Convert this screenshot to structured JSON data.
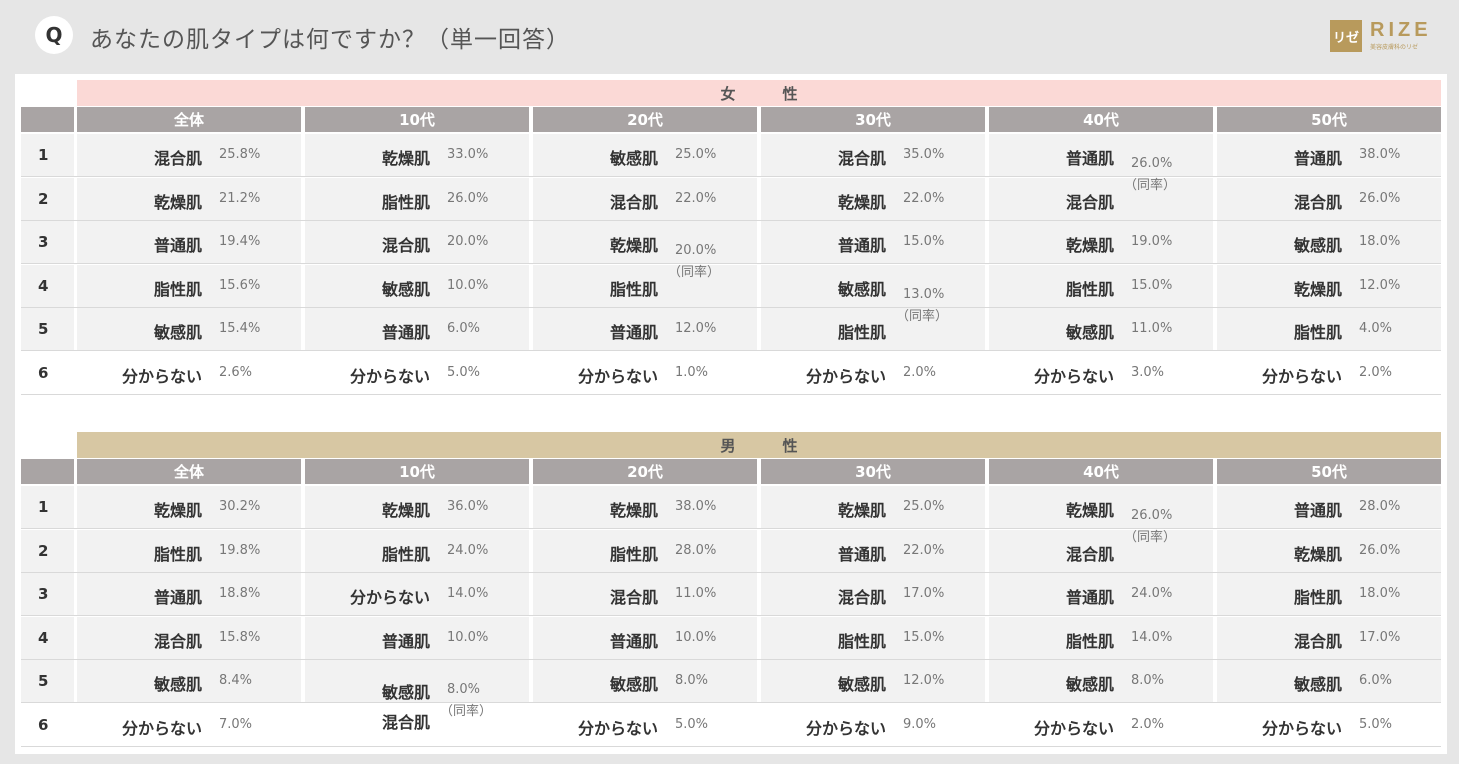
{
  "header": {
    "q_badge": "Q",
    "title": "あなたの肌タイプは何ですか？（単一回答）",
    "logo_mark": "リゼ",
    "logo_word": "RIZE",
    "logo_sub": "美容皮膚科のリゼ"
  },
  "chart_data": {
    "type": "table",
    "tie_label": "（同率）",
    "columns": [
      "全体",
      "10代",
      "20代",
      "30代",
      "40代",
      "50代"
    ],
    "ranks": [
      "1",
      "2",
      "3",
      "4",
      "5",
      "6"
    ],
    "groups": [
      {
        "name": "女　性",
        "blocks": [
          {
            "rows": [
              [
                "混合肌",
                "25.8%"
              ],
              [
                "乾燥肌",
                "21.2%"
              ],
              [
                "普通肌",
                "19.4%"
              ],
              [
                "脂性肌",
                "15.6%"
              ],
              [
                "敏感肌",
                "15.4%"
              ],
              [
                "分からない",
                "2.6%"
              ]
            ],
            "ties": []
          },
          {
            "rows": [
              [
                "乾燥肌",
                "33.0%"
              ],
              [
                "脂性肌",
                "26.0%"
              ],
              [
                "混合肌",
                "20.0%"
              ],
              [
                "敏感肌",
                "10.0%"
              ],
              [
                "普通肌",
                "6.0%"
              ],
              [
                "分からない",
                "5.0%"
              ]
            ],
            "ties": []
          },
          {
            "rows": [
              [
                "敏感肌",
                "25.0%"
              ],
              [
                "混合肌",
                "22.0%"
              ],
              [
                "乾燥肌",
                ""
              ],
              [
                "脂性肌",
                ""
              ],
              [
                "普通肌",
                "12.0%"
              ],
              [
                "分からない",
                "1.0%"
              ]
            ],
            "ties": [
              {
                "ranks": [
                  3,
                  4
                ],
                "value": "20.0%"
              }
            ]
          },
          {
            "rows": [
              [
                "混合肌",
                "35.0%"
              ],
              [
                "乾燥肌",
                "22.0%"
              ],
              [
                "普通肌",
                "15.0%"
              ],
              [
                "敏感肌",
                ""
              ],
              [
                "脂性肌",
                ""
              ],
              [
                "分からない",
                "2.0%"
              ]
            ],
            "ties": [
              {
                "ranks": [
                  4,
                  5
                ],
                "value": "13.0%"
              }
            ]
          },
          {
            "rows": [
              [
                "普通肌",
                ""
              ],
              [
                "混合肌",
                ""
              ],
              [
                "乾燥肌",
                "19.0%"
              ],
              [
                "脂性肌",
                "15.0%"
              ],
              [
                "敏感肌",
                "11.0%"
              ],
              [
                "分からない",
                "3.0%"
              ]
            ],
            "ties": [
              {
                "ranks": [
                  1,
                  2
                ],
                "value": "26.0%"
              }
            ]
          },
          {
            "rows": [
              [
                "普通肌",
                "38.0%"
              ],
              [
                "混合肌",
                "26.0%"
              ],
              [
                "敏感肌",
                "18.0%"
              ],
              [
                "乾燥肌",
                "12.0%"
              ],
              [
                "脂性肌",
                "4.0%"
              ],
              [
                "分からない",
                "2.0%"
              ]
            ],
            "ties": []
          }
        ]
      },
      {
        "name": "男　性",
        "blocks": [
          {
            "rows": [
              [
                "乾燥肌",
                "30.2%"
              ],
              [
                "脂性肌",
                "19.8%"
              ],
              [
                "普通肌",
                "18.8%"
              ],
              [
                "混合肌",
                "15.8%"
              ],
              [
                "敏感肌",
                "8.4%"
              ],
              [
                "分からない",
                "7.0%"
              ]
            ],
            "ties": []
          },
          {
            "rows": [
              [
                "乾燥肌",
                "36.0%"
              ],
              [
                "脂性肌",
                "24.0%"
              ],
              [
                "分からない",
                "14.0%"
              ],
              [
                "普通肌",
                "10.0%"
              ],
              [
                "敏感肌",
                ""
              ],
              [
                "混合肌",
                ""
              ]
            ],
            "ties": [
              {
                "ranks": [
                  5,
                  6
                ],
                "value": "8.0%"
              }
            ]
          },
          {
            "rows": [
              [
                "乾燥肌",
                "38.0%"
              ],
              [
                "脂性肌",
                "28.0%"
              ],
              [
                "混合肌",
                "11.0%"
              ],
              [
                "普通肌",
                "10.0%"
              ],
              [
                "敏感肌",
                "8.0%"
              ],
              [
                "分からない",
                "5.0%"
              ]
            ],
            "ties": []
          },
          {
            "rows": [
              [
                "乾燥肌",
                "25.0%"
              ],
              [
                "普通肌",
                "22.0%"
              ],
              [
                "混合肌",
                "17.0%"
              ],
              [
                "脂性肌",
                "15.0%"
              ],
              [
                "敏感肌",
                "12.0%"
              ],
              [
                "分からない",
                "9.0%"
              ]
            ],
            "ties": []
          },
          {
            "rows": [
              [
                "乾燥肌",
                ""
              ],
              [
                "混合肌",
                ""
              ],
              [
                "普通肌",
                "24.0%"
              ],
              [
                "脂性肌",
                "14.0%"
              ],
              [
                "敏感肌",
                "8.0%"
              ],
              [
                "分からない",
                "2.0%"
              ]
            ],
            "ties": [
              {
                "ranks": [
                  1,
                  2
                ],
                "value": "26.0%"
              }
            ]
          },
          {
            "rows": [
              [
                "普通肌",
                "28.0%"
              ],
              [
                "乾燥肌",
                "26.0%"
              ],
              [
                "脂性肌",
                "18.0%"
              ],
              [
                "混合肌",
                "17.0%"
              ],
              [
                "敏感肌",
                "6.0%"
              ],
              [
                "分からない",
                "5.0%"
              ]
            ],
            "ties": []
          }
        ]
      }
    ]
  },
  "colors": {
    "female_bar": "#fbd9d6",
    "male_bar": "#d7c7a3",
    "header_cell": "#a9a4a4",
    "row_bg": "#f2f2f2",
    "brand": "#b89a5c"
  }
}
